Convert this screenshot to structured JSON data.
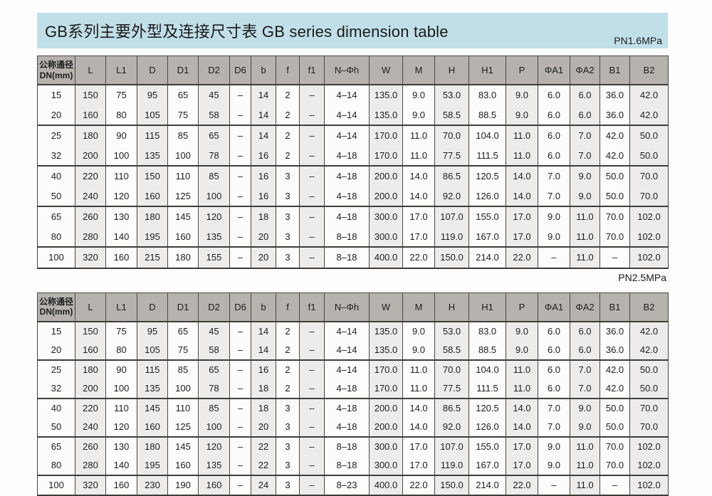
{
  "page": {
    "title": "GB系列主要外型及连接尺寸表 GB series dimension table"
  },
  "colors": {
    "title_bar_bg": "#c1dfe8",
    "header_bg": "#b6b3af",
    "shaded_column_bg": "#edecea",
    "row_bg": "#fcfcfc",
    "border": "#4b4844",
    "text": "#1d1d1d"
  },
  "tables": [
    {
      "pressure_label": "PN1.6MPa",
      "row_header": {
        "line1": "公称通径",
        "line2": "DN(mm)"
      },
      "columns": [
        "L",
        "L1",
        "D",
        "D1",
        "D2",
        "D6",
        "b",
        "f",
        "f1",
        "N–Φh",
        "W",
        "M",
        "H",
        "H1",
        "P",
        "ΦA1",
        "ΦA2",
        "B1",
        "B2"
      ],
      "rows": [
        {
          "dn": "15",
          "values": [
            "150",
            "75",
            "95",
            "65",
            "45",
            "–",
            "14",
            "2",
            "–",
            "4–14",
            "135.0",
            "9.0",
            "53.0",
            "83.0",
            "9.0",
            "6.0",
            "6.0",
            "36.0",
            "42.0"
          ]
        },
        {
          "dn": "20",
          "values": [
            "160",
            "80",
            "105",
            "75",
            "58",
            "–",
            "14",
            "2",
            "–",
            "4–14",
            "135.0",
            "9.0",
            "58.5",
            "88.5",
            "9.0",
            "6.0",
            "6.0",
            "36.0",
            "42.0"
          ]
        },
        {
          "dn": "25",
          "values": [
            "180",
            "90",
            "115",
            "85",
            "65",
            "–",
            "14",
            "2",
            "–",
            "4–14",
            "170.0",
            "11.0",
            "70.0",
            "104.0",
            "11.0",
            "6.0",
            "7.0",
            "42.0",
            "50.0"
          ]
        },
        {
          "dn": "32",
          "values": [
            "200",
            "100",
            "135",
            "100",
            "78",
            "–",
            "16",
            "2",
            "–",
            "4–18",
            "170.0",
            "11.0",
            "77.5",
            "111.5",
            "11.0",
            "6.0",
            "7.0",
            "42.0",
            "50.0"
          ]
        },
        {
          "dn": "40",
          "values": [
            "220",
            "110",
            "150",
            "110",
            "85",
            "–",
            "16",
            "3",
            "–",
            "4–18",
            "200.0",
            "14.0",
            "86.5",
            "120.5",
            "14.0",
            "7.0",
            "9.0",
            "50.0",
            "70.0"
          ]
        },
        {
          "dn": "50",
          "values": [
            "240",
            "120",
            "160",
            "125",
            "100",
            "–",
            "16",
            "3",
            "–",
            "4–18",
            "200.0",
            "14.0",
            "92.0",
            "126.0",
            "14.0",
            "7.0",
            "9.0",
            "50.0",
            "70.0"
          ]
        },
        {
          "dn": "65",
          "values": [
            "260",
            "130",
            "180",
            "145",
            "120",
            "–",
            "18",
            "3",
            "–",
            "4–18",
            "300.0",
            "17.0",
            "107.0",
            "155.0",
            "17.0",
            "9.0",
            "11.0",
            "70.0",
            "102.0"
          ]
        },
        {
          "dn": "80",
          "values": [
            "280",
            "140",
            "195",
            "160",
            "135",
            "–",
            "20",
            "3",
            "–",
            "8–18",
            "300.0",
            "17.0",
            "119.0",
            "167.0",
            "17.0",
            "9.0",
            "11.0",
            "70.0",
            "102.0"
          ]
        },
        {
          "dn": "100",
          "values": [
            "320",
            "160",
            "215",
            "180",
            "155",
            "–",
            "20",
            "3",
            "–",
            "8–18",
            "400.0",
            "22.0",
            "150.0",
            "214.0",
            "22.0",
            "–",
            "11.0",
            "–",
            "102.0"
          ]
        }
      ]
    },
    {
      "pressure_label": "PN2.5MPa",
      "row_header": {
        "line1": "公称通径",
        "line2": "DN(mm)"
      },
      "columns": [
        "L",
        "L1",
        "D",
        "D1",
        "D2",
        "D6",
        "b",
        "f",
        "f1",
        "N–Φh",
        "W",
        "M",
        "H",
        "H1",
        "P",
        "ΦA1",
        "ΦA2",
        "B1",
        "B2"
      ],
      "rows": [
        {
          "dn": "15",
          "values": [
            "150",
            "75",
            "95",
            "65",
            "45",
            "–",
            "14",
            "2",
            "–",
            "4–14",
            "135.0",
            "9.0",
            "53.0",
            "83.0",
            "9.0",
            "6.0",
            "6.0",
            "36.0",
            "42.0"
          ]
        },
        {
          "dn": "20",
          "values": [
            "160",
            "80",
            "105",
            "75",
            "58",
            "–",
            "14",
            "2",
            "–",
            "4–14",
            "135.0",
            "9.0",
            "58.5",
            "88.5",
            "9.0",
            "6.0",
            "6.0",
            "36.0",
            "42.0"
          ]
        },
        {
          "dn": "25",
          "values": [
            "180",
            "90",
            "115",
            "85",
            "65",
            "–",
            "16",
            "2",
            "–",
            "4–14",
            "170.0",
            "11.0",
            "70.0",
            "104.0",
            "11.0",
            "6.0",
            "7.0",
            "42.0",
            "50.0"
          ]
        },
        {
          "dn": "32",
          "values": [
            "200",
            "100",
            "135",
            "100",
            "78",
            "–",
            "18",
            "2",
            "–",
            "4–18",
            "170.0",
            "11.0",
            "77.5",
            "111.5",
            "11.0",
            "6.0",
            "7.0",
            "42.0",
            "50.0"
          ]
        },
        {
          "dn": "40",
          "values": [
            "220",
            "110",
            "145",
            "110",
            "85",
            "–",
            "18",
            "3",
            "–",
            "4–18",
            "200.0",
            "14.0",
            "86.5",
            "120.5",
            "14.0",
            "7.0",
            "9.0",
            "50.0",
            "70.0"
          ]
        },
        {
          "dn": "50",
          "values": [
            "240",
            "120",
            "160",
            "125",
            "100",
            "–",
            "20",
            "3",
            "–",
            "4–18",
            "200.0",
            "14.0",
            "92.0",
            "126.0",
            "14.0",
            "7.0",
            "9.0",
            "50.0",
            "70.0"
          ]
        },
        {
          "dn": "65",
          "values": [
            "260",
            "130",
            "180",
            "145",
            "120",
            "–",
            "22",
            "3",
            "–",
            "8–18",
            "300.0",
            "17.0",
            "107.0",
            "155.0",
            "17.0",
            "9.0",
            "11.0",
            "70.0",
            "102.0"
          ]
        },
        {
          "dn": "80",
          "values": [
            "280",
            "140",
            "195",
            "160",
            "135",
            "–",
            "22",
            "3",
            "–",
            "8–18",
            "300.0",
            "17.0",
            "119.0",
            "167.0",
            "17.0",
            "9.0",
            "11.0",
            "70.0",
            "102.0"
          ]
        },
        {
          "dn": "100",
          "values": [
            "320",
            "160",
            "230",
            "190",
            "160",
            "–",
            "24",
            "3",
            "–",
            "8–23",
            "400.0",
            "22.0",
            "150.0",
            "214.0",
            "22.0",
            "–",
            "11.0",
            "–",
            "102.0"
          ]
        }
      ]
    }
  ]
}
